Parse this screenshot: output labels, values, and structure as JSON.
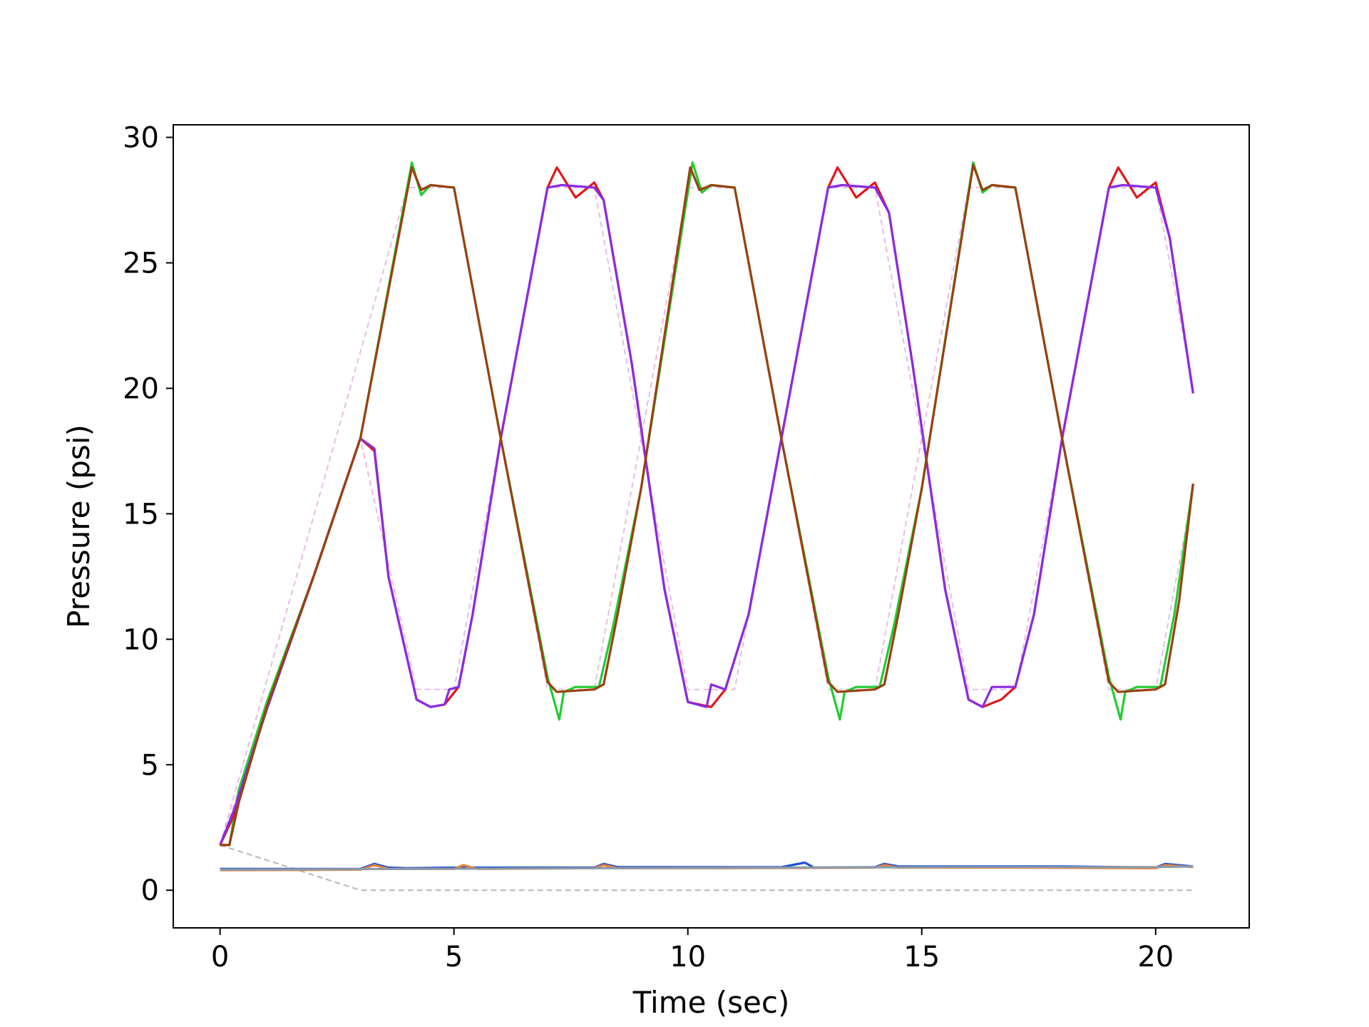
{
  "chart_data": {
    "type": "line",
    "xlabel": "Time (sec)",
    "ylabel": "Pressure (psi)",
    "xlim": [
      -1,
      22
    ],
    "ylim": [
      -1.5,
      30.5
    ],
    "xticks": [
      0,
      5,
      10,
      15,
      20
    ],
    "yticks": [
      0,
      5,
      10,
      15,
      20,
      25,
      30
    ],
    "grid": false,
    "series": [
      {
        "color": "#999999",
        "style": "dashed",
        "note": "reference setpoint (pink dashed)",
        "points": [
          [
            0,
            1.8
          ],
          [
            3,
            0
          ],
          [
            20.8,
            0
          ]
        ]
      },
      {
        "color": "#dda0dd",
        "style": "dashed",
        "points": [
          [
            0,
            1.8
          ],
          [
            3,
            18
          ],
          [
            4.2,
            8
          ],
          [
            5,
            8
          ],
          [
            7,
            28
          ],
          [
            8,
            28
          ],
          [
            10,
            8
          ],
          [
            11,
            8
          ],
          [
            13,
            28
          ],
          [
            14,
            28
          ],
          [
            16,
            8
          ],
          [
            17,
            8
          ],
          [
            19,
            28
          ],
          [
            20,
            28
          ],
          [
            20.8,
            20
          ]
        ]
      },
      {
        "color": "#dda0dd",
        "style": "dashed",
        "points": [
          [
            0,
            1.8
          ],
          [
            4,
            28
          ],
          [
            5,
            28
          ],
          [
            7,
            8
          ],
          [
            8,
            8
          ],
          [
            10,
            28
          ],
          [
            11,
            28
          ],
          [
            13,
            8
          ],
          [
            14,
            8
          ],
          [
            16,
            28
          ],
          [
            17,
            28
          ],
          [
            19,
            8
          ],
          [
            20,
            8
          ],
          [
            20.8,
            16
          ]
        ]
      },
      {
        "color": "#22cc33",
        "style": "solid",
        "points": [
          [
            0,
            1.8
          ],
          [
            0.2,
            1.8
          ],
          [
            0.4,
            4
          ],
          [
            1,
            7.5
          ],
          [
            2,
            12.5
          ],
          [
            3,
            18
          ],
          [
            4.1,
            29
          ],
          [
            4.3,
            27.7
          ],
          [
            4.5,
            28.1
          ],
          [
            5,
            28
          ],
          [
            5.3,
            25
          ],
          [
            6,
            18
          ],
          [
            7,
            8.5
          ],
          [
            7.25,
            6.8
          ],
          [
            7.35,
            7.9
          ],
          [
            7.6,
            8.1
          ],
          [
            8.1,
            8.1
          ],
          [
            8.4,
            10.5
          ],
          [
            9,
            16
          ],
          [
            10.1,
            29
          ],
          [
            10.3,
            27.8
          ],
          [
            10.5,
            28.1
          ],
          [
            11,
            28
          ],
          [
            11.3,
            25
          ],
          [
            12,
            18
          ],
          [
            13,
            8.5
          ],
          [
            13.25,
            6.8
          ],
          [
            13.35,
            7.9
          ],
          [
            13.6,
            8.1
          ],
          [
            14.1,
            8.1
          ],
          [
            14.4,
            10.5
          ],
          [
            15,
            16
          ],
          [
            16.1,
            29
          ],
          [
            16.3,
            27.8
          ],
          [
            16.5,
            28.1
          ],
          [
            17,
            28
          ],
          [
            17.3,
            25
          ],
          [
            18,
            18
          ],
          [
            19,
            8.5
          ],
          [
            19.25,
            6.8
          ],
          [
            19.35,
            7.9
          ],
          [
            19.6,
            8.1
          ],
          [
            20.1,
            8.1
          ],
          [
            20.4,
            11
          ],
          [
            20.8,
            16.2
          ]
        ]
      },
      {
        "color": "#e0161b",
        "style": "solid",
        "points": [
          [
            0,
            1.8
          ],
          [
            0.3,
            3
          ],
          [
            1,
            7.3
          ],
          [
            2,
            12.5
          ],
          [
            3,
            18
          ],
          [
            3.3,
            17.5
          ],
          [
            3.6,
            12.5
          ],
          [
            4.2,
            7.6
          ],
          [
            4.5,
            7.3
          ],
          [
            4.8,
            7.4
          ],
          [
            5.1,
            8.1
          ],
          [
            5.4,
            11
          ],
          [
            6,
            18
          ],
          [
            7,
            28
          ],
          [
            7.2,
            28.8
          ],
          [
            7.6,
            27.6
          ],
          [
            8,
            28.2
          ],
          [
            8.2,
            27.5
          ],
          [
            8.8,
            21
          ],
          [
            9.5,
            12
          ],
          [
            10,
            7.5
          ],
          [
            10.5,
            7.3
          ],
          [
            10.8,
            8
          ],
          [
            11.3,
            11
          ],
          [
            12,
            18
          ],
          [
            13,
            28
          ],
          [
            13.2,
            28.8
          ],
          [
            13.6,
            27.6
          ],
          [
            14,
            28.2
          ],
          [
            14.3,
            27
          ],
          [
            14.8,
            21
          ],
          [
            15.5,
            12
          ],
          [
            16,
            7.6
          ],
          [
            16.3,
            7.3
          ],
          [
            16.7,
            7.6
          ],
          [
            17,
            8.1
          ],
          [
            17.4,
            11
          ],
          [
            18,
            18
          ],
          [
            19,
            28
          ],
          [
            19.2,
            28.8
          ],
          [
            19.6,
            27.6
          ],
          [
            20,
            28.2
          ],
          [
            20.3,
            26
          ],
          [
            20.8,
            19.8
          ]
        ]
      },
      {
        "color": "#8a2be2",
        "style": "solid",
        "points": [
          [
            0,
            1.8
          ],
          [
            0.3,
            3.2
          ],
          [
            1,
            7.2
          ],
          [
            2,
            12.5
          ],
          [
            3,
            18
          ],
          [
            3.3,
            17.6
          ],
          [
            3.6,
            12.5
          ],
          [
            4.2,
            7.6
          ],
          [
            4.5,
            7.3
          ],
          [
            4.8,
            7.4
          ],
          [
            4.9,
            8
          ],
          [
            5.1,
            8.1
          ],
          [
            5.4,
            11
          ],
          [
            6,
            18
          ],
          [
            7,
            28
          ],
          [
            7.3,
            28.1
          ],
          [
            8,
            28
          ],
          [
            8.2,
            27.5
          ],
          [
            8.8,
            21
          ],
          [
            9.5,
            12
          ],
          [
            10,
            7.5
          ],
          [
            10.4,
            7.3
          ],
          [
            10.5,
            8.2
          ],
          [
            10.8,
            8
          ],
          [
            11.3,
            11
          ],
          [
            12,
            18
          ],
          [
            13,
            28
          ],
          [
            13.3,
            28.1
          ],
          [
            14,
            28
          ],
          [
            14.3,
            27
          ],
          [
            14.8,
            21
          ],
          [
            15.5,
            12
          ],
          [
            16,
            7.6
          ],
          [
            16.3,
            7.3
          ],
          [
            16.5,
            8.1
          ],
          [
            17,
            8.1
          ],
          [
            17.4,
            11
          ],
          [
            18,
            18
          ],
          [
            19,
            28
          ],
          [
            19.3,
            28.1
          ],
          [
            20,
            28
          ],
          [
            20.3,
            26
          ],
          [
            20.8,
            19.8
          ]
        ]
      },
      {
        "color": "#994010",
        "style": "solid",
        "points": [
          [
            0,
            1.8
          ],
          [
            0.2,
            1.8
          ],
          [
            0.4,
            3.5
          ],
          [
            1,
            7.3
          ],
          [
            2,
            12.5
          ],
          [
            3,
            18
          ],
          [
            4.1,
            28.8
          ],
          [
            4.3,
            27.9
          ],
          [
            4.5,
            28.1
          ],
          [
            5,
            28
          ],
          [
            5.3,
            25
          ],
          [
            6,
            18
          ],
          [
            7,
            8.3
          ],
          [
            7.2,
            7.9
          ],
          [
            8,
            8
          ],
          [
            8.2,
            8.2
          ],
          [
            8.5,
            11
          ],
          [
            9,
            16
          ],
          [
            10.05,
            28.8
          ],
          [
            10.25,
            27.9
          ],
          [
            10.5,
            28.1
          ],
          [
            11,
            28
          ],
          [
            11.3,
            25
          ],
          [
            12,
            18
          ],
          [
            13,
            8.3
          ],
          [
            13.2,
            7.9
          ],
          [
            14,
            8
          ],
          [
            14.2,
            8.2
          ],
          [
            14.5,
            11
          ],
          [
            15,
            16
          ],
          [
            16.1,
            28.9
          ],
          [
            16.3,
            27.9
          ],
          [
            16.5,
            28.1
          ],
          [
            17,
            28
          ],
          [
            17.3,
            25
          ],
          [
            18,
            18
          ],
          [
            19,
            8.3
          ],
          [
            19.2,
            7.9
          ],
          [
            20,
            8
          ],
          [
            20.2,
            8.2
          ],
          [
            20.5,
            11.5
          ],
          [
            20.8,
            16.2
          ]
        ]
      },
      {
        "color": "#1f4fd6",
        "style": "solid",
        "points": [
          [
            0,
            0.85
          ],
          [
            3,
            0.85
          ],
          [
            3.3,
            1.05
          ],
          [
            3.6,
            0.9
          ],
          [
            4,
            0.88
          ],
          [
            5,
            0.9
          ],
          [
            8,
            0.9
          ],
          [
            8.2,
            1.05
          ],
          [
            8.5,
            0.92
          ],
          [
            11,
            0.92
          ],
          [
            12,
            0.92
          ],
          [
            12.5,
            1.1
          ],
          [
            12.7,
            0.9
          ],
          [
            14,
            0.92
          ],
          [
            14.2,
            1.05
          ],
          [
            14.5,
            0.95
          ],
          [
            17,
            0.95
          ],
          [
            18,
            0.95
          ],
          [
            20,
            0.9
          ],
          [
            20.2,
            1.05
          ],
          [
            20.8,
            0.95
          ]
        ]
      },
      {
        "color": "#e8823a",
        "style": "solid",
        "points": [
          [
            0,
            0.8
          ],
          [
            3,
            0.82
          ],
          [
            3.3,
            1
          ],
          [
            3.6,
            0.85
          ],
          [
            5,
            0.85
          ],
          [
            5.2,
            1
          ],
          [
            5.5,
            0.85
          ],
          [
            8,
            0.88
          ],
          [
            8.2,
            1
          ],
          [
            8.5,
            0.88
          ],
          [
            11,
            0.88
          ],
          [
            14,
            0.9
          ],
          [
            14.2,
            1
          ],
          [
            14.5,
            0.9
          ],
          [
            17,
            0.9
          ],
          [
            20,
            0.88
          ],
          [
            20.2,
            1
          ],
          [
            20.8,
            0.92
          ]
        ]
      },
      {
        "color": "#8c9aa8",
        "style": "solid",
        "points": [
          [
            0,
            0.82
          ],
          [
            4,
            0.85
          ],
          [
            8,
            0.88
          ],
          [
            12,
            0.9
          ],
          [
            16,
            0.92
          ],
          [
            20,
            0.92
          ],
          [
            20.8,
            0.95
          ]
        ]
      }
    ]
  }
}
